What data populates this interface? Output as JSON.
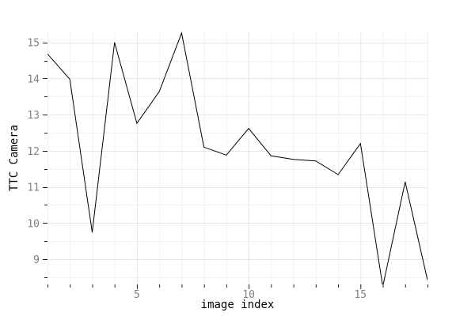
{
  "chart_data": {
    "type": "line",
    "xlabel": "image index",
    "ylabel": "TTC Camera",
    "xlim": [
      1,
      18
    ],
    "ylim": [
      8.3,
      15.3
    ],
    "x_ticks": [
      5,
      10,
      15
    ],
    "y_ticks": [
      9,
      10,
      11,
      12,
      13,
      14,
      15
    ],
    "grid": true,
    "series": [
      {
        "x": [
          1,
          2,
          3,
          4,
          5,
          6,
          7,
          8,
          9,
          10,
          11,
          12,
          13,
          14,
          15,
          16,
          17,
          18
        ],
        "y": [
          14.68,
          13.98,
          9.74,
          15.0,
          12.76,
          13.64,
          15.26,
          12.1,
          11.88,
          12.62,
          11.86,
          11.76,
          11.72,
          11.34,
          12.2,
          8.24,
          11.14,
          8.42
        ]
      }
    ],
    "colors": {
      "line": "#000000",
      "grid": "#e6e6e6",
      "tick_text": "#808080"
    }
  }
}
